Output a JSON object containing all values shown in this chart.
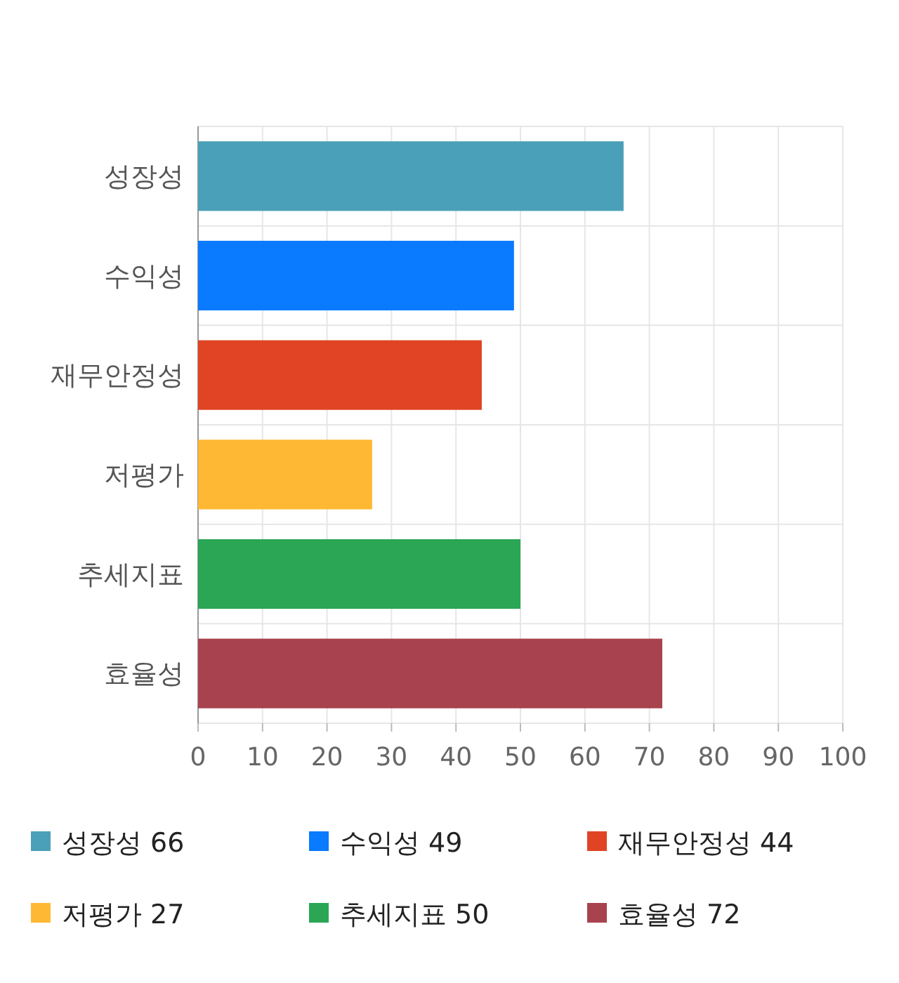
{
  "chart_data": {
    "type": "bar",
    "orientation": "horizontal",
    "stacked": true,
    "categories": [
      "성장성",
      "수익성",
      "재무안정성",
      "저평가",
      "추세지표",
      "효율성"
    ],
    "series": [
      {
        "name": "성장성 66",
        "color": "#4aa0b8",
        "values": [
          66,
          null,
          null,
          null,
          null,
          null
        ]
      },
      {
        "name": "수익성 49",
        "color": "#0a7aff",
        "values": [
          null,
          49,
          null,
          null,
          null,
          null
        ]
      },
      {
        "name": "재무안정성 44",
        "color": "#e04424",
        "values": [
          null,
          null,
          44,
          null,
          null,
          null
        ]
      },
      {
        "name": "저평가 27",
        "color": "#ffb833",
        "values": [
          null,
          null,
          null,
          27,
          null,
          null
        ]
      },
      {
        "name": "추세지표 50",
        "color": "#2aa655",
        "values": [
          null,
          null,
          null,
          null,
          50,
          null
        ]
      },
      {
        "name": "효율성 72",
        "color": "#a8424f",
        "values": [
          null,
          null,
          null,
          null,
          null,
          72
        ]
      }
    ],
    "xlim": [
      0,
      100
    ],
    "xticks": [
      0,
      10,
      20,
      30,
      40,
      50,
      60,
      70,
      80,
      90,
      100
    ],
    "grid": true,
    "legend": "bottom"
  }
}
